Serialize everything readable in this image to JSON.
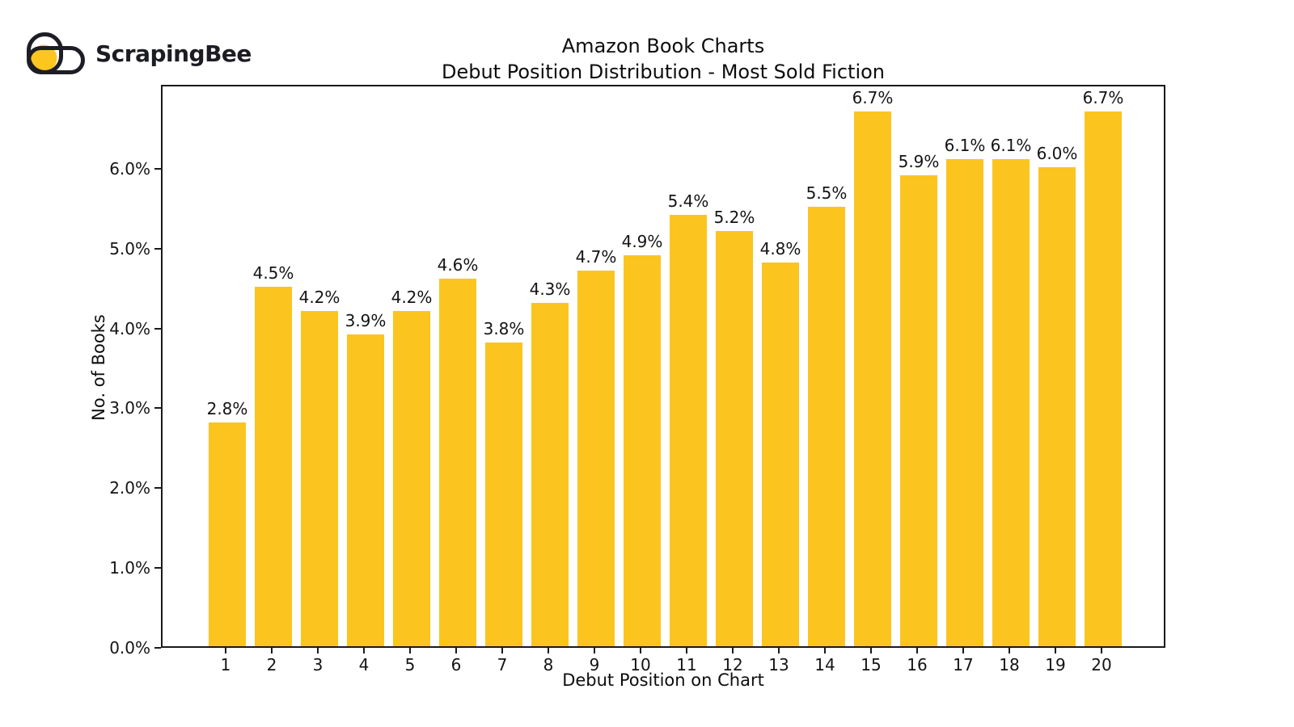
{
  "logo": {
    "text": "ScrapingBee",
    "icon": "scrapingbee-bee-icon",
    "yellow": "#FCC61E",
    "dark": "#1D1D26"
  },
  "chart_data": {
    "type": "bar",
    "title": "Amazon Book Charts",
    "subtitle": "Debut Position Distribution - Most Sold Fiction",
    "xlabel": "Debut Position on Chart",
    "ylabel": "No. of Books",
    "categories": [
      "1",
      "2",
      "3",
      "4",
      "5",
      "6",
      "7",
      "8",
      "9",
      "10",
      "11",
      "12",
      "13",
      "14",
      "15",
      "16",
      "17",
      "18",
      "19",
      "20"
    ],
    "values": [
      2.8,
      4.5,
      4.2,
      3.9,
      4.2,
      4.6,
      3.8,
      4.3,
      4.7,
      4.9,
      5.4,
      5.2,
      4.8,
      5.5,
      6.7,
      5.9,
      6.1,
      6.1,
      6.0,
      6.7
    ],
    "bar_labels": [
      "2.8%",
      "4.5%",
      "4.2%",
      "3.9%",
      "4.2%",
      "4.6%",
      "3.8%",
      "4.3%",
      "4.7%",
      "4.9%",
      "5.4%",
      "5.2%",
      "4.8%",
      "5.5%",
      "6.7%",
      "5.9%",
      "6.1%",
      "6.1%",
      "6.0%",
      "6.7%"
    ],
    "ytick_values": [
      0,
      1,
      2,
      3,
      4,
      5,
      6
    ],
    "ytick_labels": [
      "0.0%",
      "1.0%",
      "2.0%",
      "3.0%",
      "4.0%",
      "5.0%",
      "6.0%"
    ],
    "ylim": [
      0,
      7.05
    ],
    "bar_color": "#FCC41F",
    "axis_color": "#1A1A1A",
    "grid": false,
    "legend": null
  }
}
